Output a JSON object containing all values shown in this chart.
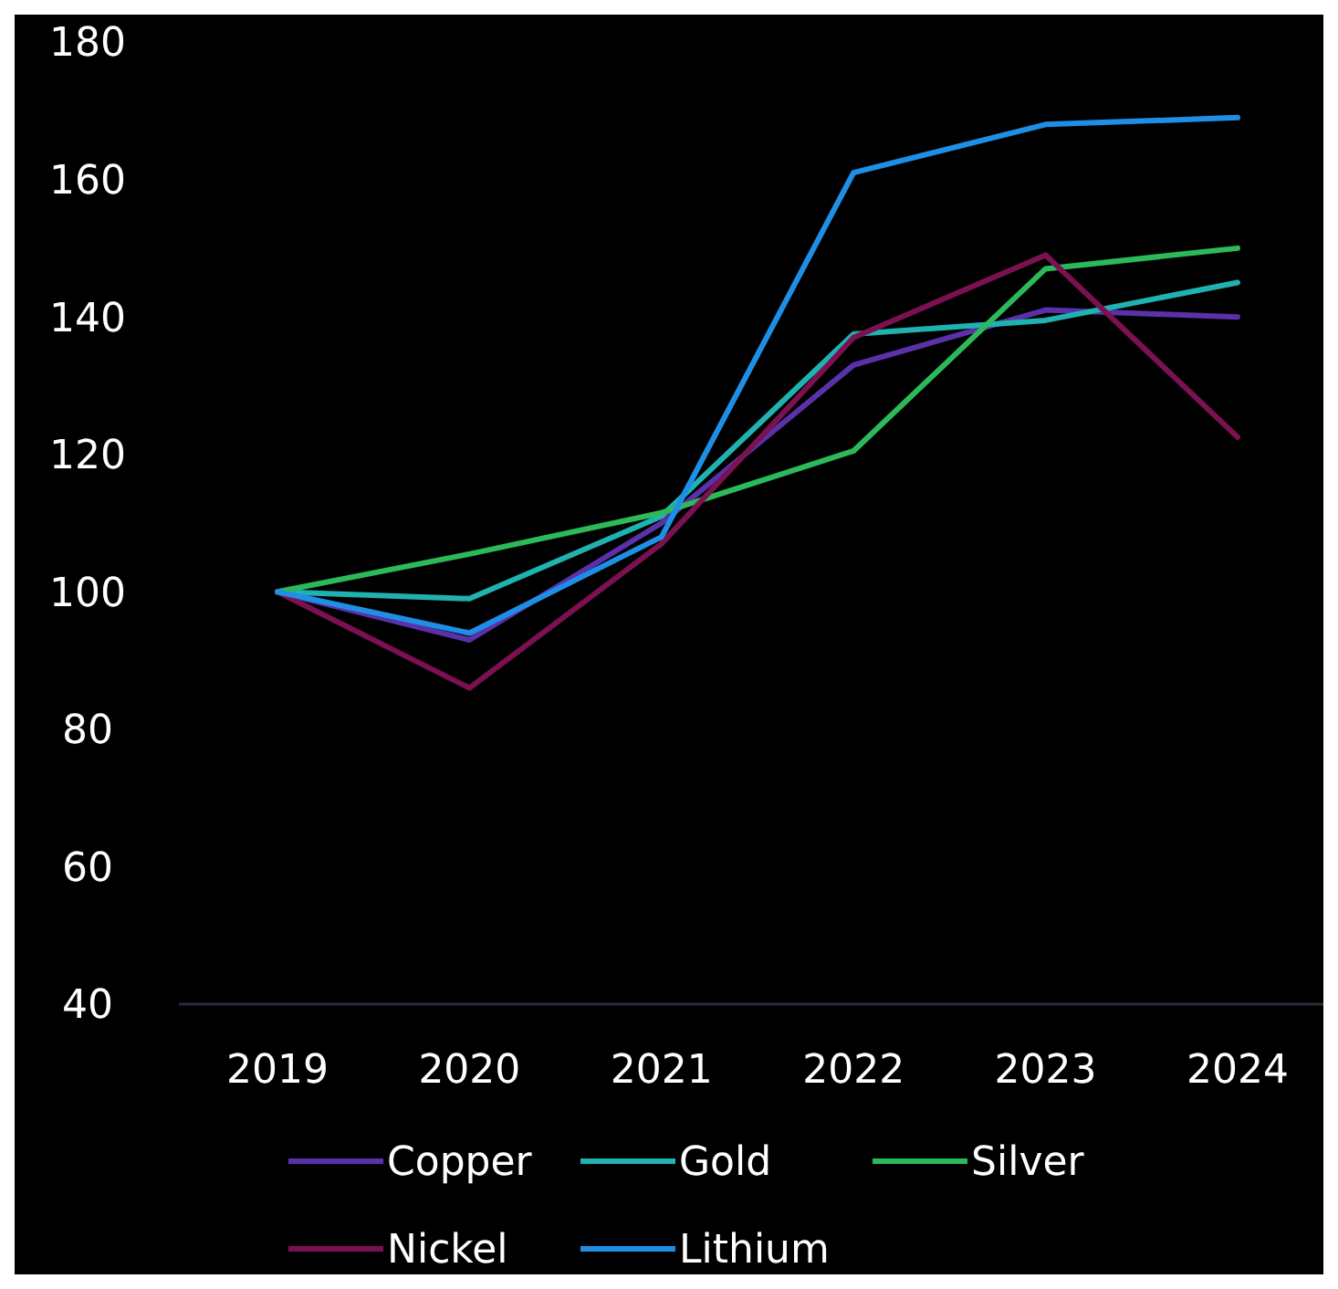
{
  "chart_data": {
    "type": "line",
    "categories": [
      "2019",
      "2020",
      "2021",
      "2022",
      "2023",
      "2024"
    ],
    "series": [
      {
        "name": "Copper",
        "color": "#5a31a8",
        "values": [
          100,
          93,
          110,
          133,
          141,
          140
        ]
      },
      {
        "name": "Gold",
        "color": "#20b2b0",
        "values": [
          100,
          99,
          111,
          137.5,
          139.5,
          145
        ]
      },
      {
        "name": "Silver",
        "color": "#2cb95a",
        "values": [
          100,
          105.5,
          111.5,
          120.5,
          147,
          150
        ]
      },
      {
        "name": "Nickel",
        "color": "#7c1152",
        "values": [
          100,
          86,
          107,
          137,
          149,
          122.5
        ]
      },
      {
        "name": "Lithium",
        "color": "#1f8fe6",
        "values": [
          100,
          94,
          108,
          161,
          168,
          169
        ]
      }
    ],
    "ylim": [
      40,
      180
    ],
    "yticks": [
      40,
      60,
      80,
      100,
      120,
      140,
      160,
      180
    ],
    "grid": false,
    "legend": "bottom",
    "marker": "none",
    "line_style": "solid"
  }
}
